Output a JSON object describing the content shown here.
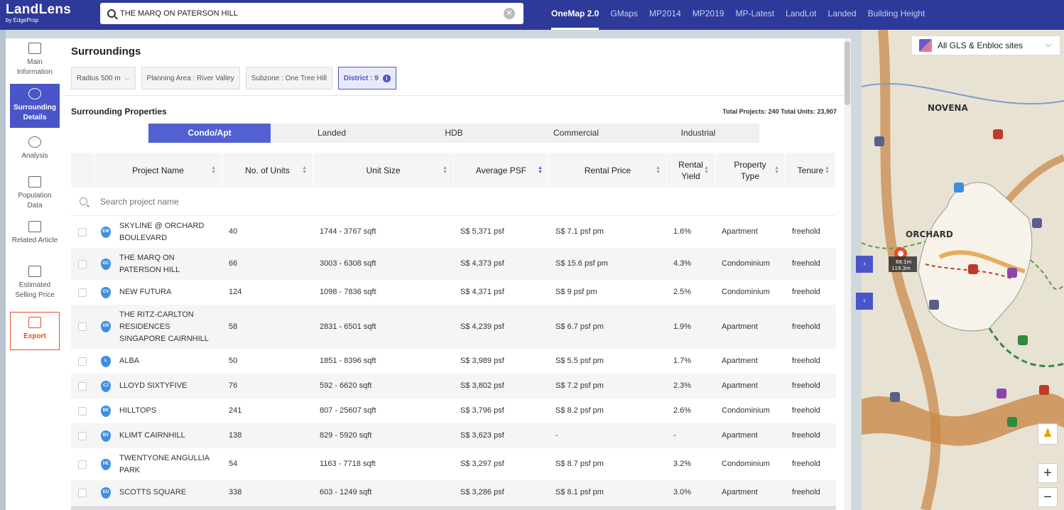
{
  "app": {
    "logo_main": "LandLens",
    "logo_sub": "by EdgeProp"
  },
  "search": {
    "value": "THE MARQ ON PATERSON HILL",
    "clear_glyph": "✕"
  },
  "tabs": [
    {
      "label": "OneMap 2.0",
      "active": true
    },
    {
      "label": "GMaps"
    },
    {
      "label": "MP2014"
    },
    {
      "label": "MP2019"
    },
    {
      "label": "MP-Latest"
    },
    {
      "label": "LandLot"
    },
    {
      "label": "Landed"
    },
    {
      "label": "Building Height"
    }
  ],
  "map": {
    "layer_select": "All GLS & Enbloc sites",
    "labels": [
      "NOVENA",
      "ORCHARD"
    ],
    "measure": [
      "66.1m",
      "119.3m"
    ],
    "zoom_in": "+",
    "zoom_out": "−",
    "toggle_open": "›",
    "toggle_close": "‹"
  },
  "nav": [
    {
      "label": "Main Information",
      "icon": "map-icon"
    },
    {
      "label": "Surrounding Details",
      "icon": "people-icon",
      "active": true
    },
    {
      "label": "Analysis",
      "icon": "analysis-icon"
    },
    {
      "label": "Population Data",
      "icon": "population-icon"
    },
    {
      "label": "Related Article",
      "icon": "article-icon"
    },
    {
      "label": "Estimated Selling Price",
      "icon": "chart-icon"
    },
    {
      "label": "Export",
      "icon": "export-icon"
    }
  ],
  "panel": {
    "title": "Surroundings",
    "filters": {
      "radius": "Radius 500 m",
      "planning_area": "Planning Area : River Valley",
      "subzone": "Subzone : One Tree Hill",
      "district": "District : 9"
    },
    "section_title": "Surrounding Properties",
    "totals": "Total Projects: 240  Total Units: 23,907",
    "type_tabs": [
      "Condo/Apt",
      "Landed",
      "HDB",
      "Commercial",
      "Industrial"
    ],
    "search_placeholder": "Search project name"
  },
  "table": {
    "headers": [
      "Project Name",
      "No. of Units",
      "Unit Size",
      "Average PSF",
      "Rental Price",
      "Rental Yield",
      "Property Type",
      "Tenure"
    ],
    "rows": [
      {
        "code": "EW",
        "name": "SKYLINE @ ORCHARD BOULEVARD",
        "units": "40",
        "size": "1744 - 3767 sqft",
        "psf": "S$ 5,371 psf",
        "rent": "S$ 7.1 psf pm",
        "yield": "1.6%",
        "type": "Apartment",
        "tenure": "freehold"
      },
      {
        "code": "GC",
        "name": "THE MARQ ON PATERSON HILL",
        "units": "66",
        "size": "3003 - 6308 sqft",
        "psf": "S$ 4,373 psf",
        "rent": "S$ 15.6 psf pm",
        "yield": "4.3%",
        "type": "Condominium",
        "tenure": "freehold"
      },
      {
        "code": "CV",
        "name": "NEW FUTURA",
        "units": "124",
        "size": "1098 - 7836 sqft",
        "psf": "S$ 4,371 psf",
        "rent": "S$ 9 psf pm",
        "yield": "2.5%",
        "type": "Condominium",
        "tenure": "freehold"
      },
      {
        "code": "GR",
        "name": "THE RITZ-CARLTON RESIDENCES SINGAPORE CAIRNHILL",
        "units": "58",
        "size": "2831 - 6501 sqft",
        "psf": "S$ 4,239 psf",
        "rent": "S$ 6.7 psf pm",
        "yield": "1.9%",
        "type": "Apartment",
        "tenure": "freehold"
      },
      {
        "code": "L",
        "name": "ALBA",
        "units": "50",
        "size": "1851 - 8396 sqft",
        "psf": "S$ 3,989 psf",
        "rent": "S$ 5.5 psf pm",
        "yield": "1.7%",
        "type": "Apartment",
        "tenure": "freehold"
      },
      {
        "code": "CJ",
        "name": "LLOYD SIXTYFIVE",
        "units": "76",
        "size": "592 - 6620 sqft",
        "psf": "S$ 3,802 psf",
        "rent": "S$ 7.2 psf pm",
        "yield": "2.3%",
        "type": "Apartment",
        "tenure": "freehold"
      },
      {
        "code": "BK",
        "name": "HILLTOPS",
        "units": "241",
        "size": "807 - 25607 sqft",
        "psf": "S$ 3,796 psf",
        "rent": "S$ 8.2 psf pm",
        "yield": "2.6%",
        "type": "Condominium",
        "tenure": "freehold"
      },
      {
        "code": "BV",
        "name": "KLIMT CAIRNHILL",
        "units": "138",
        "size": "829 - 5920 sqft",
        "psf": "S$ 3,623 psf",
        "rent": "-",
        "yield": "-",
        "type": "Apartment",
        "tenure": "freehold"
      },
      {
        "code": "HE",
        "name": "TWENTYONE ANGULLIA PARK",
        "units": "54",
        "size": "1163 - 7718 sqft",
        "psf": "S$ 3,297 psf",
        "rent": "S$ 8.7 psf pm",
        "yield": "3.2%",
        "type": "Condominium",
        "tenure": "freehold"
      },
      {
        "code": "EU",
        "name": "SCOTTS SQUARE",
        "units": "338",
        "size": "603 - 1249 sqft",
        "psf": "S$ 3,286 psf",
        "rent": "S$ 8.1 psf pm",
        "yield": "3.0%",
        "type": "Apartment",
        "tenure": "freehold"
      }
    ]
  },
  "colors": {
    "brand": "#2e3a99",
    "accent": "#4a55c9",
    "export": "#e94e2b"
  }
}
